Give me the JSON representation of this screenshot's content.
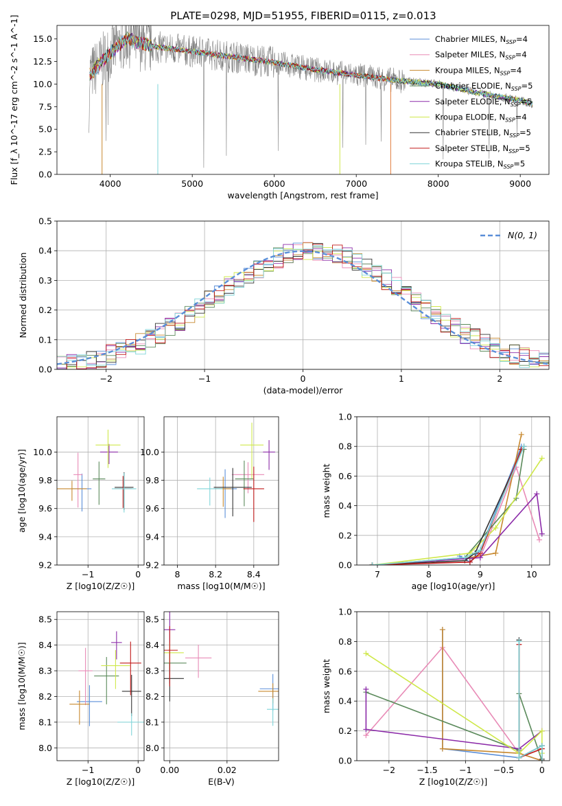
{
  "figure": {
    "title": "PLATE=0298, MJD=51955, FIBERID=0115, z=0.013"
  },
  "colors": {
    "Chabrier MILES": "#5a8ed8",
    "Salpeter MILES": "#e88ab6",
    "Kroupa MILES": "#c7882e",
    "Chabrier ELODIE": "#5b8a5b",
    "Salpeter ELODIE": "#8b2aa8",
    "Kroupa ELODIE": "#cfe84a",
    "Chabrier STELIB": "#333333",
    "Salpeter STELIB": "#c01818",
    "Kroupa STELIB": "#7ed4d8",
    "data": "#808080",
    "normal": "#5a8ed8",
    "orange": "#e07b39"
  },
  "chart_data": [
    {
      "id": "spectrum",
      "type": "line",
      "xlabel": "wavelength [Angstrom, rest frame]",
      "ylabel": "Flux [f_λ 10^-17 erg cm^-2 s^-1 A^-1]",
      "xlim": [
        3350,
        9350
      ],
      "ylim": [
        0,
        16.5
      ],
      "xticks": [
        4000,
        5000,
        6000,
        7000,
        8000,
        9000
      ],
      "yticks": [
        0.0,
        2.5,
        5.0,
        7.5,
        10.0,
        12.5,
        15.0
      ],
      "legend_position": "top-right",
      "legend": [
        {
          "name": "Chabrier MILES",
          "nssp": "4"
        },
        {
          "name": "Salpeter MILES",
          "nssp": "4"
        },
        {
          "name": "Kroupa MILES",
          "nssp": "4"
        },
        {
          "name": "Chabrier ELODIE",
          "nssp": "5"
        },
        {
          "name": "Salpeter ELODIE",
          "nssp": "5"
        },
        {
          "name": "Kroupa ELODIE",
          "nssp": "4"
        },
        {
          "name": "Chabrier STELIB",
          "nssp": "5"
        },
        {
          "name": "Salpeter STELIB",
          "nssp": "5"
        },
        {
          "name": "Kroupa STELIB",
          "nssp": "5"
        }
      ],
      "continuum": {
        "x": [
          3750,
          4000,
          4200,
          4500,
          5000,
          5500,
          6000,
          6500,
          7000,
          7500,
          8000,
          8500,
          9000,
          9150
        ],
        "y": [
          11.0,
          13.5,
          15.0,
          14.2,
          13.6,
          13.0,
          12.4,
          11.6,
          11.0,
          10.4,
          10.0,
          9.0,
          8.2,
          7.8
        ]
      }
    },
    {
      "id": "residuals",
      "type": "line",
      "xlabel": "(data-model)/error",
      "ylabel": "Normed distribution",
      "xlim": [
        -2.5,
        2.5
      ],
      "ylim": [
        0.0,
        0.5
      ],
      "xticks": [
        -2,
        -1,
        0,
        1,
        2
      ],
      "yticks": [
        0.0,
        0.1,
        0.2,
        0.3,
        0.4,
        0.5
      ],
      "legend_position": "top-right",
      "normal_label": "N(0, 1)"
    },
    {
      "id": "age-vs-Z",
      "type": "scatter",
      "xlabel": "Z [log10(Z/Z☉)]",
      "ylabel": "age  [log10(age/yr)]",
      "xlim": [
        -1.62,
        0.12
      ],
      "ylim": [
        9.2,
        10.25
      ],
      "xticks": [
        -1,
        0
      ],
      "yticks": [
        9.2,
        9.4,
        9.6,
        9.8,
        10.0
      ]
    },
    {
      "id": "age-vs-mass",
      "type": "scatter",
      "xlabel": "mass [log10(M/M☉)]",
      "ylabel": "",
      "xlim": [
        7.93,
        8.53
      ],
      "ylim": [
        9.2,
        10.25
      ],
      "xticks": [
        8.0,
        8.2,
        8.4
      ],
      "yticks": [
        9.2,
        9.4,
        9.6,
        9.8,
        10.0
      ]
    },
    {
      "id": "weight-vs-age",
      "type": "line",
      "xlabel": "age  [log10(age/yr)]",
      "ylabel": "mass weight",
      "xlim": [
        6.6,
        10.35
      ],
      "ylim": [
        0.0,
        1.0
      ],
      "xticks": [
        7,
        8,
        9,
        10
      ],
      "yticks": [
        0.0,
        0.2,
        0.4,
        0.6,
        0.8,
        1.0
      ]
    },
    {
      "id": "mass-vs-Z",
      "type": "scatter",
      "xlabel": "Z [log10(Z/Z☉)]",
      "ylabel": "mass [log10(M/M☉)]",
      "xlim": [
        -1.62,
        0.12
      ],
      "ylim": [
        7.95,
        8.53
      ],
      "xticks": [
        -1,
        0
      ],
      "yticks": [
        8.0,
        8.1,
        8.2,
        8.3,
        8.4,
        8.5
      ]
    },
    {
      "id": "mass-vs-ebv",
      "type": "scatter",
      "xlabel": "E(B-V)",
      "ylabel": "",
      "xlim": [
        -0.002,
        0.038
      ],
      "ylim": [
        7.95,
        8.53
      ],
      "xticks": [
        0.0,
        0.02
      ],
      "xticklabels": [
        "0.00",
        "0.02"
      ],
      "yticks": [
        8.0,
        8.1,
        8.2,
        8.3,
        8.4,
        8.5
      ]
    },
    {
      "id": "weight-vs-Z",
      "type": "line",
      "xlabel": "Z [log10(Z/Z☉)]",
      "ylabel": "mass weight",
      "xlim": [
        -2.42,
        0.1
      ],
      "ylim": [
        0.0,
        1.0
      ],
      "xticks": [
        -2.0,
        -1.5,
        -1.0,
        -0.5,
        0.0
      ],
      "yticks": [
        0.0,
        0.2,
        0.4,
        0.6,
        0.8,
        1.0
      ]
    }
  ],
  "models": [
    {
      "name": "Chabrier MILES",
      "Z": [
        -1.12,
        -0.62
      ],
      "age": [
        9.74,
        9.86
      ],
      "mass": [
        8.13,
        8.0
      ],
      "ebv": 0.036,
      "wAge": [
        [
          8.6,
          0.06
        ],
        [
          8.8,
          0.02
        ],
        [
          9.0,
          0.1
        ],
        [
          9.8,
          0.8
        ]
      ],
      "wZ": [
        [
          -1.3,
          0.88
        ],
        [
          -1.3,
          0.08
        ],
        [
          -0.3,
          0.02
        ],
        [
          0.0,
          0.1
        ]
      ]
    },
    {
      "name": "Salpeter MILES",
      "Z": [
        -1.2,
        -1.0
      ],
      "age": [
        9.84,
        9.9
      ],
      "mass": [
        8.25,
        8.22
      ],
      "ebv": 0.01,
      "wAge": [
        [
          6.9,
          0.0
        ],
        [
          9.0,
          0.05
        ],
        [
          9.7,
          0.66
        ],
        [
          10.15,
          0.17
        ]
      ],
      "wZ": [
        [
          -2.3,
          0.17
        ],
        [
          -1.3,
          0.76
        ],
        [
          -0.3,
          0.05
        ],
        [
          0.0,
          0.0
        ]
      ]
    },
    {
      "name": "Kroupa MILES",
      "Z": [
        -1.32,
        -1.0
      ],
      "age": [
        9.74,
        9.74
      ],
      "mass": [
        8.12,
        8.12
      ],
      "ebv": 0.036,
      "wAge": [
        [
          6.9,
          0.0
        ],
        [
          8.8,
          0.05
        ],
        [
          9.3,
          0.08
        ],
        [
          9.8,
          0.88
        ]
      ],
      "wZ": [
        [
          -1.3,
          0.88
        ],
        [
          -1.3,
          0.08
        ],
        [
          -0.3,
          0.05
        ],
        [
          0.0,
          0.0
        ]
      ]
    },
    {
      "name": "Chabrier ELODIE",
      "Z": [
        -0.78,
        -0.55
      ],
      "age": [
        9.81,
        9.81
      ],
      "mass": [
        8.23,
        8.23
      ],
      "ebv": 0.0,
      "wAge": [
        [
          6.9,
          0.0
        ],
        [
          8.7,
          0.05
        ],
        [
          9.7,
          0.45
        ],
        [
          9.85,
          0.78
        ]
      ],
      "wZ": [
        [
          -2.3,
          0.46
        ],
        [
          -0.3,
          0.07
        ],
        [
          -0.3,
          0.45
        ],
        [
          0.0,
          0.0
        ]
      ]
    },
    {
      "name": "Salpeter ELODIE",
      "Z": [
        -0.58,
        -0.55
      ],
      "age": [
        10.0,
        10.0
      ],
      "mass": [
        8.36,
        8.36
      ],
      "ebv": 0.0,
      "wAge": [
        [
          6.9,
          0.0
        ],
        [
          9.0,
          0.05
        ],
        [
          10.1,
          0.48
        ],
        [
          10.2,
          0.21
        ]
      ],
      "wZ": [
        [
          -2.3,
          0.48
        ],
        [
          -2.3,
          0.21
        ],
        [
          -0.3,
          0.08
        ],
        [
          0.0,
          0.2
        ]
      ]
    },
    {
      "name": "Kroupa ELODIE",
      "Z": [
        -0.6,
        -0.6
      ],
      "age": [
        10.05,
        10.05
      ],
      "mass": [
        8.27,
        8.27
      ],
      "ebv": 0.0,
      "wAge": [
        [
          6.9,
          0.0
        ],
        [
          8.8,
          0.08
        ],
        [
          9.3,
          0.25
        ],
        [
          10.2,
          0.72
        ]
      ],
      "wZ": [
        [
          -2.3,
          0.72
        ],
        [
          -0.3,
          0.05
        ],
        [
          0.0,
          0.2
        ],
        [
          0.0,
          0.05
        ]
      ]
    },
    {
      "name": "Chabrier STELIB",
      "Z": [
        -0.28,
        -0.25
      ],
      "age": [
        9.75,
        9.75
      ],
      "mass": [
        8.17,
        8.17
      ],
      "ebv": 0.0,
      "wAge": [
        [
          6.9,
          0.0
        ],
        [
          8.7,
          0.03
        ],
        [
          8.9,
          0.08
        ],
        [
          9.85,
          0.8
        ]
      ],
      "wZ": [
        [
          -0.3,
          0.81
        ],
        [
          -0.3,
          0.02
        ],
        [
          0.0,
          0.1
        ],
        [
          0.0,
          0.01
        ]
      ]
    },
    {
      "name": "Salpeter STELIB",
      "Z": [
        -0.3,
        -0.3
      ],
      "age": [
        9.74,
        9.74
      ],
      "mass": [
        8.28,
        8.28
      ],
      "ebv": 0.0,
      "wAge": [
        [
          6.9,
          0.0
        ],
        [
          8.8,
          0.02
        ],
        [
          9.0,
          0.08
        ],
        [
          9.8,
          0.78
        ]
      ],
      "wZ": [
        [
          -0.3,
          0.78
        ],
        [
          -0.3,
          0.02
        ],
        [
          0.0,
          0.08
        ],
        [
          0.0,
          0.0
        ]
      ]
    },
    {
      "name": "Kroupa STELIB",
      "Z": [
        -0.28,
        -0.28
      ],
      "age": [
        9.74,
        9.74
      ],
      "mass": [
        8.05,
        8.05
      ],
      "ebv": 0.036,
      "wAge": [
        [
          6.9,
          0.0
        ],
        [
          8.7,
          0.05
        ],
        [
          9.0,
          0.1
        ],
        [
          9.85,
          0.8
        ]
      ],
      "wZ": [
        [
          -0.3,
          0.8
        ],
        [
          -0.3,
          0.02
        ],
        [
          0.0,
          0.1
        ],
        [
          0.0,
          0.0
        ]
      ]
    }
  ]
}
